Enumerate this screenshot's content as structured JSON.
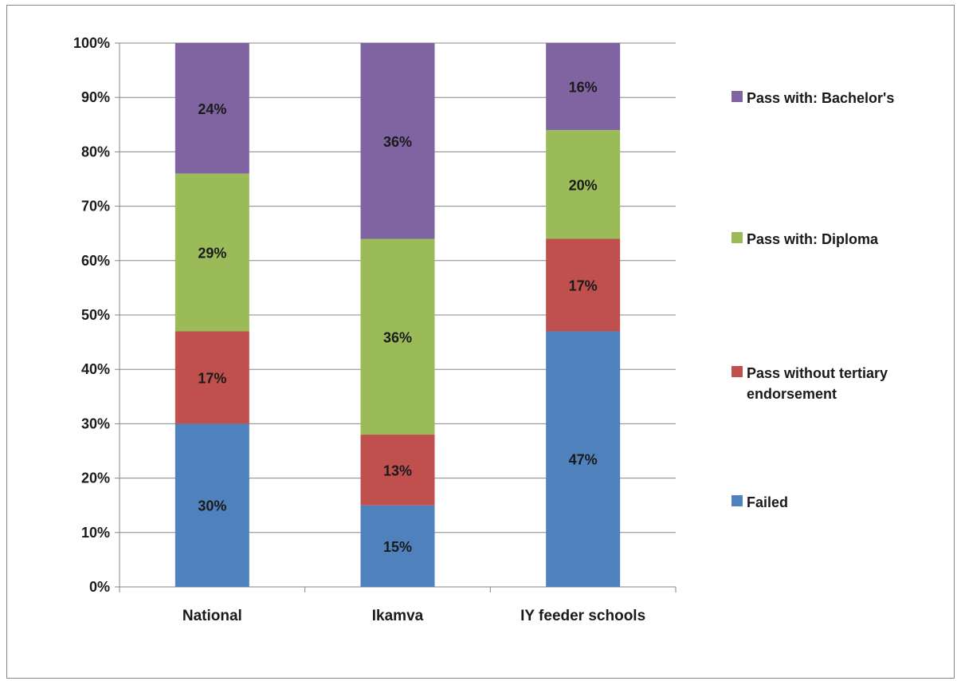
{
  "chart_data": {
    "type": "bar",
    "stacked": true,
    "percent_stacked": true,
    "categories": [
      "National",
      "Ikamva",
      "IY feeder schools"
    ],
    "series": [
      {
        "name": "Failed",
        "values": [
          30,
          15,
          47
        ],
        "labels": [
          "30%",
          "15%",
          "47%"
        ],
        "color": "#4F81BD"
      },
      {
        "name": "Pass without tertiary endorsement",
        "values": [
          17,
          13,
          17
        ],
        "labels": [
          "17%",
          "13%",
          "17%"
        ],
        "color": "#C0504D"
      },
      {
        "name": "Pass with: Diploma",
        "values": [
          29,
          36,
          20
        ],
        "labels": [
          "29%",
          "36%",
          "20%"
        ],
        "color": "#9BBB59"
      },
      {
        "name": "Pass with: Bachelor's",
        "values": [
          24,
          36,
          16
        ],
        "labels": [
          "24%",
          "36%",
          "16%"
        ],
        "color": "#8064A2"
      }
    ],
    "y_ticks": [
      "0%",
      "10%",
      "20%",
      "30%",
      "40%",
      "50%",
      "60%",
      "70%",
      "80%",
      "90%",
      "100%"
    ],
    "ylim": [
      0,
      100
    ],
    "title": "",
    "xlabel": "",
    "ylabel": "",
    "grid": true,
    "legend_position": "right",
    "legend_order": [
      "Pass with: Bachelor's",
      "Pass with: Diploma",
      "Pass without tertiary endorsement",
      "Failed"
    ]
  }
}
